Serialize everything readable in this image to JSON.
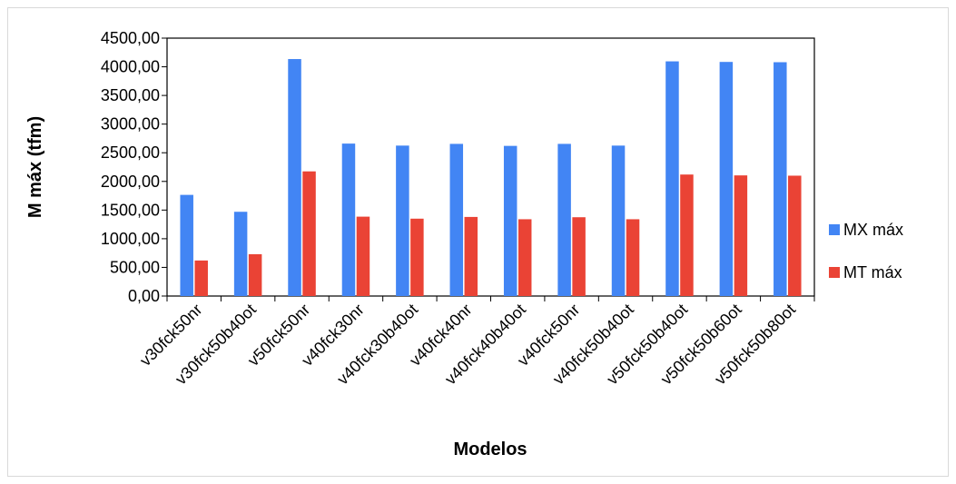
{
  "chart_data": {
    "type": "bar",
    "title": "",
    "xlabel": "Modelos",
    "ylabel": "M máx (tfm)",
    "ylim": [
      0,
      4500
    ],
    "ytick_step": 500,
    "ytick_labels": [
      "0,00",
      "500,00",
      "1000,00",
      "1500,00",
      "2000,00",
      "2500,00",
      "3000,00",
      "3500,00",
      "4000,00",
      "4500,00"
    ],
    "grid": false,
    "legend_position": "right",
    "categories": [
      "v30fck50nr",
      "v30fck50b40ot",
      "v50fck50nr",
      "v40fck30nr",
      "v40fck30b40ot",
      "v40fck40nr",
      "v40fck40b40ot",
      "v40fck50nr",
      "v40fck50b40ot",
      "v50fck50b40ot",
      "v50fck50b60ot",
      "v50fck50b80ot"
    ],
    "series": [
      {
        "name": "MX máx",
        "color": "#4285f4",
        "values": [
          1765,
          1470,
          4135,
          2660,
          2625,
          2655,
          2620,
          2655,
          2625,
          4095,
          4085,
          4080
        ]
      },
      {
        "name": "MT máx",
        "color": "#ea4335",
        "values": [
          620,
          730,
          2175,
          1385,
          1350,
          1380,
          1340,
          1375,
          1340,
          2120,
          2105,
          2100
        ]
      }
    ]
  }
}
